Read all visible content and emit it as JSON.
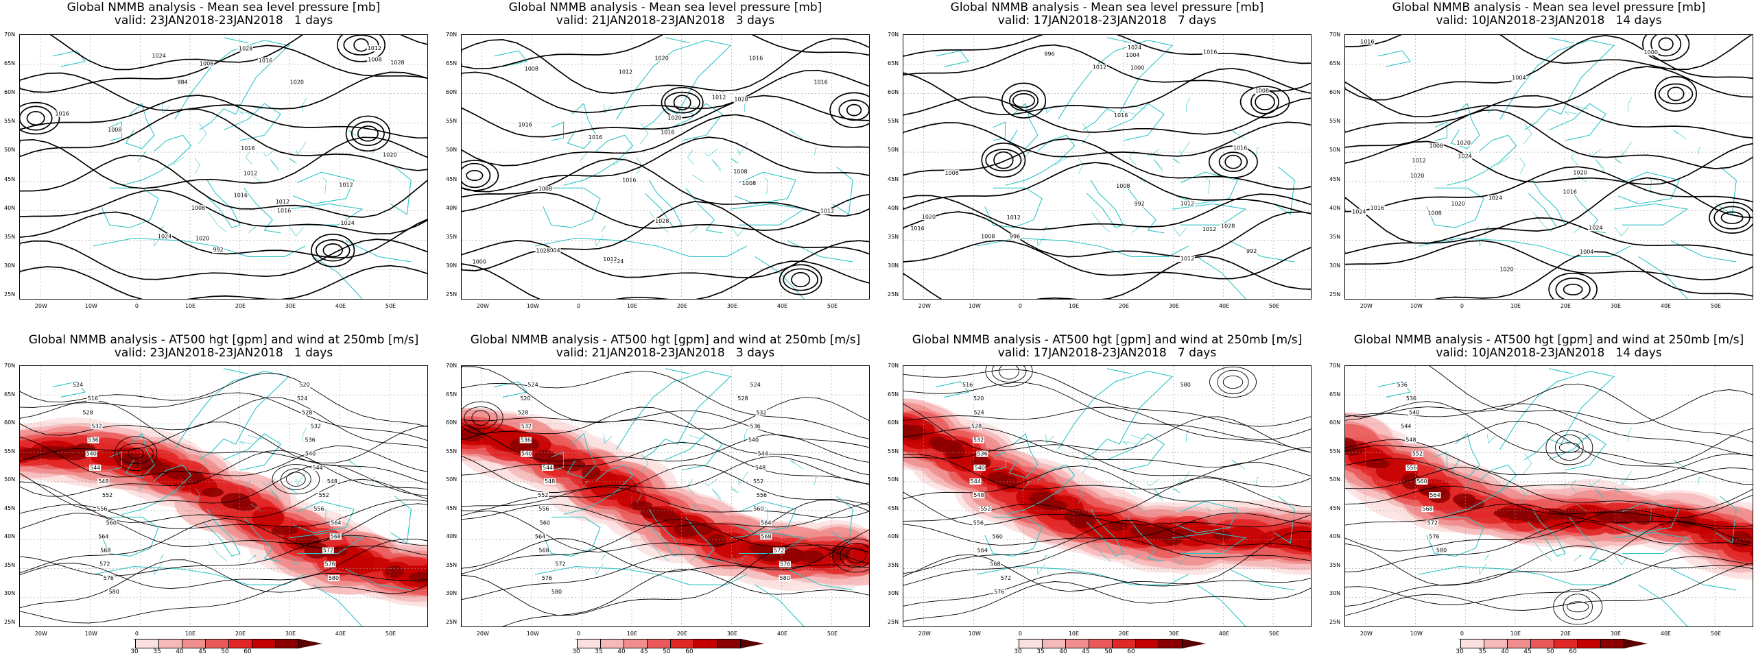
{
  "panels_top": [
    {
      "title": "Global NMMB analysis - Mean sea level pressure [mb]",
      "subtitle": "valid: 23JAN2018-23JAN2018   1 days",
      "labels": [
        "1008",
        "992",
        "984",
        "1016",
        "1012",
        "1020",
        "1024",
        "1024",
        "1020",
        "1028",
        "1016",
        "1020",
        "1012",
        "1008",
        "1016",
        "1028",
        "1024",
        "1016",
        "1012",
        "1016",
        "1008",
        "1012",
        "1008"
      ]
    },
    {
      "title": "Global NMMB analysis - Mean sea level pressure [mb]",
      "subtitle": "valid: 21JAN2018-23JAN2018   3 days",
      "labels": [
        "1008",
        "1004",
        "1000",
        "1016",
        "1016",
        "1008",
        "1012",
        "1016",
        "1020",
        "1024",
        "1028",
        "1012",
        "1016",
        "1012",
        "1008",
        "1020",
        "1016",
        "1028",
        "1016",
        "1008",
        "1028",
        "1012"
      ]
    },
    {
      "title": "Global NMMB analysis - Mean sea level pressure [mb]",
      "subtitle": "valid: 17JAN2018-23JAN2018   7 days",
      "labels": [
        "996",
        "992",
        "992",
        "996",
        "1000",
        "1004",
        "1008",
        "1012",
        "1016",
        "1008",
        "1008",
        "1028",
        "1024",
        "1012",
        "1012",
        "1008",
        "1016",
        "1012",
        "1020",
        "1016",
        "1016",
        "1012"
      ]
    },
    {
      "title": "Global NMMB analysis - Mean sea level pressure [mb]",
      "subtitle": "valid: 10JAN2018-23JAN2018   14 days",
      "labels": [
        "1000",
        "1004",
        "1008",
        "1008",
        "1004",
        "1016",
        "1012",
        "1016",
        "1020",
        "1024",
        "1024",
        "1020",
        "1016",
        "1020",
        "1020",
        "1024",
        "1020",
        "1024"
      ]
    }
  ],
  "panels_bottom": [
    {
      "title": "Global NMMB analysis - AT500 hgt [gpm] and wind at 250mb [m/s]",
      "subtitle": "valid: 23JAN2018-23JAN2018   1 days",
      "labels": [
        "524",
        "516",
        "528",
        "532",
        "536",
        "540",
        "544",
        "548",
        "552",
        "556",
        "560",
        "564",
        "568",
        "572",
        "576",
        "580",
        "520",
        "524",
        "528",
        "532",
        "536",
        "540",
        "544",
        "548",
        "552",
        "556",
        "564",
        "568",
        "572",
        "576",
        "580"
      ]
    },
    {
      "title": "Global NMMB analysis - AT500 hgt [gpm] and wind at 250mb [m/s]",
      "subtitle": "valid: 21JAN2018-23JAN2018   3 days",
      "labels": [
        "524",
        "520",
        "528",
        "532",
        "536",
        "540",
        "544",
        "548",
        "552",
        "556",
        "560",
        "564",
        "568",
        "572",
        "576",
        "580",
        "524",
        "528",
        "532",
        "536",
        "540",
        "544",
        "548",
        "552",
        "556",
        "560",
        "564",
        "568",
        "572",
        "576",
        "580"
      ]
    },
    {
      "title": "Global NMMB analysis - AT500 hgt [gpm] and wind at 250mb [m/s]",
      "subtitle": "valid: 17JAN2018-23JAN2018   7 days",
      "labels": [
        "516",
        "520",
        "524",
        "528",
        "532",
        "536",
        "540",
        "544",
        "548",
        "552",
        "556",
        "560",
        "564",
        "568",
        "572",
        "576",
        "580"
      ]
    },
    {
      "title": "Global NMMB analysis - AT500 hgt [gpm] and wind at 250mb [m/s]",
      "subtitle": "valid: 10JAN2018-23JAN2018   14 days",
      "labels": [
        "536",
        "536",
        "540",
        "544",
        "548",
        "552",
        "556",
        "560",
        "564",
        "568",
        "572",
        "576",
        "580"
      ]
    }
  ],
  "lat_ticks": [
    "70N",
    "65N",
    "60N",
    "55N",
    "50N",
    "45N",
    "40N",
    "35N",
    "30N",
    "25N"
  ],
  "lon_ticks": [
    "20W",
    "10W",
    "0",
    "10E",
    "20E",
    "30E",
    "40E",
    "50E"
  ],
  "colorbar": {
    "ticks": [
      "30",
      "35",
      "40",
      "45",
      "50",
      "60"
    ],
    "colors": [
      "#fbe0e0",
      "#f6b9b9",
      "#f08d8d",
      "#ea5a5a",
      "#e22727",
      "#c40000",
      "#8a0000",
      "#5a0000"
    ]
  },
  "colors": {
    "coast": "#2fc4c6",
    "contour": "#000000",
    "grid": "#9a9a9a"
  }
}
